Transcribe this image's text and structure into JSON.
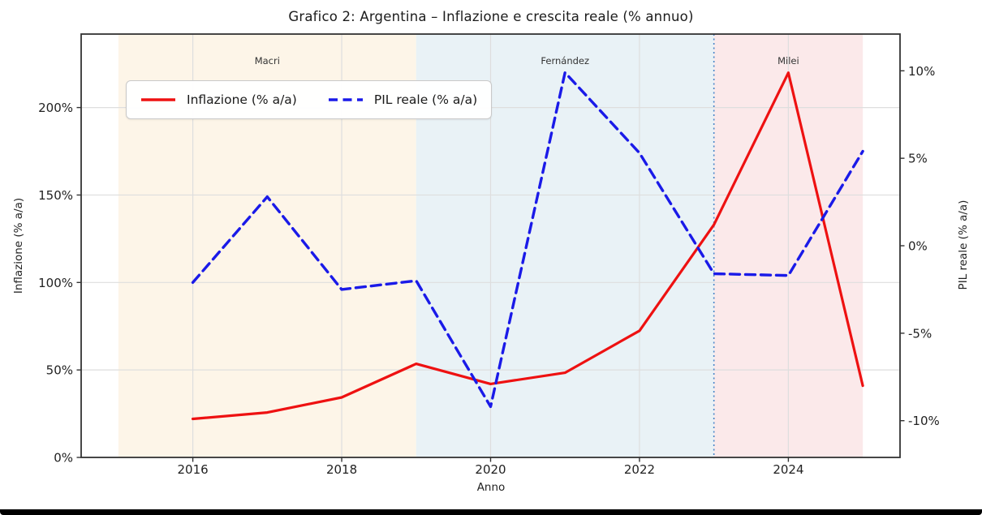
{
  "chart_data": {
    "type": "line",
    "title": "Grafico 2: Argentina – Inflazione e crescita reale (% annuo)",
    "xlabel": "Anno",
    "ylabel_left": "Inflazione (% a/a)",
    "ylabel_right": "PIL reale (% a/a)",
    "x": [
      2016,
      2017,
      2018,
      2019,
      2020,
      2021,
      2022,
      2023,
      2024,
      2025
    ],
    "x_ticks": [
      "2016",
      "2018",
      "2020",
      "2022",
      "2024"
    ],
    "x_tick_values": [
      2016,
      2018,
      2020,
      2022,
      2024
    ],
    "xlim": [
      2014.5,
      2025.5
    ],
    "left_axis": {
      "lim": [
        0,
        242
      ],
      "tick_values": [
        0,
        50,
        100,
        150,
        200
      ],
      "tick_labels": [
        "0%",
        "50%",
        "100%",
        "150%",
        "200%"
      ]
    },
    "right_axis": {
      "lim": [
        -12.1,
        12.1
      ],
      "tick_values": [
        -10,
        -5,
        0,
        5,
        10
      ],
      "tick_labels": [
        "-10%",
        "-5%",
        "0%",
        "5%",
        "10%"
      ]
    },
    "series": [
      {
        "name": "Inflazione (% a/a)",
        "axis": "left",
        "color": "#ee1111",
        "line_style": "solid",
        "values": [
          22,
          25.7,
          34.3,
          53.5,
          42.0,
          48.4,
          72.4,
          133.0,
          219.9,
          41.0
        ]
      },
      {
        "name": "PIL reale (% a/a)",
        "axis": "right",
        "color": "#1a1ae8",
        "line_style": "dashed",
        "values": [
          -2.1,
          2.8,
          -2.5,
          -2.0,
          -9.2,
          9.9,
          5.3,
          -1.6,
          -1.7,
          5.4
        ]
      }
    ],
    "eras": [
      {
        "label": "Macri",
        "from": 2015,
        "to": 2019,
        "color": "#fdf5e8"
      },
      {
        "label": "Fernández",
        "from": 2019,
        "to": 2023,
        "color": "#e9f2f6"
      },
      {
        "label": "Milei",
        "from": 2023,
        "to": 2025,
        "color": "#fbe9ea"
      }
    ],
    "vline": {
      "x": 2023,
      "color": "#4a86c8"
    },
    "grid": true,
    "legend_position": "upper-left",
    "colors": {
      "spine": "#333333",
      "grid": "#dedede",
      "tick_text": "#222222",
      "era_text": "#333333"
    }
  }
}
